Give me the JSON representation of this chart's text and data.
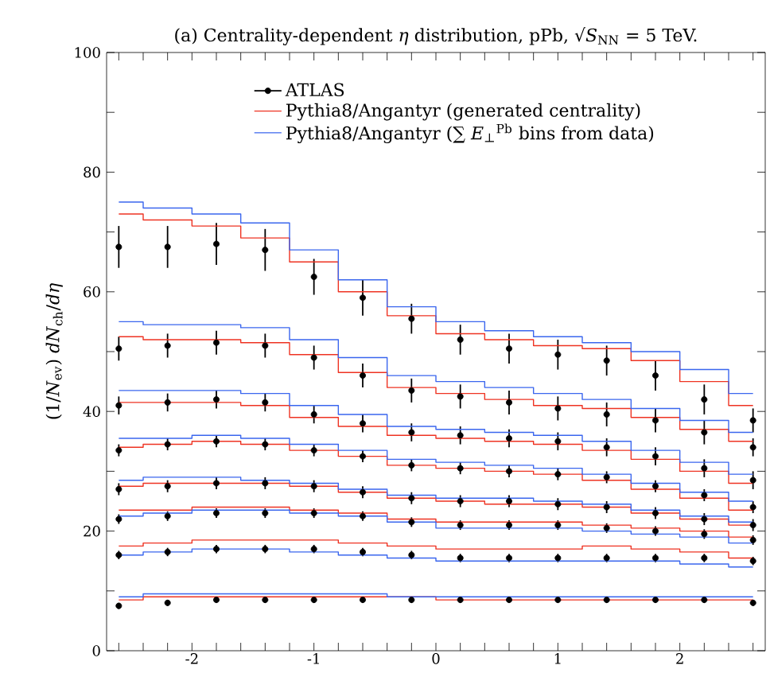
{
  "chart_data": {
    "type": "scatter",
    "title": "(a) Centrality-dependent *η* distribution, pPb, √*S*$_{NN}$ = 5 TeV.",
    "ylabel": "(1/*N*$_{ev}$) *dN*$_{ch}$/*dη*",
    "x": [
      -2.6,
      -2.2,
      -1.8,
      -1.4,
      -1.0,
      -0.6,
      -0.2,
      0.2,
      0.6,
      1.0,
      1.4,
      1.8,
      2.2,
      2.6
    ],
    "xlim": [
      -2.7,
      2.7
    ],
    "ylim": [
      0,
      100
    ],
    "xticks": [
      {
        "value": -2.6,
        "label": null
      },
      {
        "value": -2.4,
        "label": null
      },
      {
        "value": -2.2,
        "label": null
      },
      {
        "value": -2,
        "label": "-2"
      },
      {
        "value": -1.8,
        "label": null
      },
      {
        "value": -1.6,
        "label": null
      },
      {
        "value": -1.4,
        "label": null
      },
      {
        "value": -1.2,
        "label": null
      },
      {
        "value": -1,
        "label": "-1"
      },
      {
        "value": -0.8,
        "label": null
      },
      {
        "value": -0.6,
        "label": null
      },
      {
        "value": -0.4,
        "label": null
      },
      {
        "value": -0.2,
        "label": null
      },
      0,
      {
        "value": 0.2,
        "label": null
      },
      {
        "value": 0.4,
        "label": null
      },
      {
        "value": 0.6,
        "label": null
      },
      {
        "value": 0.8,
        "label": null
      },
      1,
      {
        "value": 1.2,
        "label": null
      },
      {
        "value": 1.4,
        "label": null
      },
      {
        "value": 1.6,
        "label": null
      },
      {
        "value": 1.8,
        "label": null
      },
      2,
      {
        "value": 2.2,
        "label": null
      },
      {
        "value": 2.4,
        "label": null
      },
      {
        "value": 2.6,
        "label": null
      }
    ],
    "yticks": [
      0,
      {
        "value": 10,
        "label": null
      },
      20,
      {
        "value": 30,
        "label": null
      },
      40,
      {
        "value": 50,
        "label": null
      },
      60,
      {
        "value": 70,
        "label": null
      },
      80,
      {
        "value": 90,
        "label": null
      },
      100
    ],
    "legend": "top",
    "series": [
      {
        "name": "ATLAS",
        "marker": "circle",
        "color": "#000000",
        "values": [
          67.5,
          67.5,
          68,
          67,
          62.5,
          59,
          55.5,
          52,
          50.5,
          49.5,
          48.5,
          46,
          42,
          38.5
        ],
        "errors": [
          3.5,
          3.5,
          3.5,
          3.5,
          3,
          3,
          2.5,
          2.5,
          2.5,
          2.5,
          2.5,
          2.5,
          2.5,
          2
        ]
      },
      {
        "name": "Pythia8/Angantyr (generated centrality)",
        "type": "step",
        "color": "#ee3322",
        "values": [
          73,
          72,
          71,
          69,
          65,
          60,
          56,
          53,
          52,
          51,
          50.5,
          48.5,
          45,
          41
        ]
      },
      {
        "name": "Pythia8/Angantyr (∑ *E*$_{⊥}$$^{Pb}$ bins from data)",
        "type": "step",
        "color": "#3a66ee",
        "values": [
          75,
          74,
          73,
          71.5,
          67,
          62,
          57.5,
          55,
          53.5,
          52.5,
          51.5,
          50,
          47,
          43
        ]
      },
      {
        "marker": "circle",
        "color": "#000000",
        "values": [
          50.5,
          51,
          51.5,
          51,
          49,
          46,
          43.5,
          42.5,
          41.5,
          40.5,
          39.5,
          38.5,
          36.5,
          34
        ],
        "errors": [
          2,
          2,
          2,
          2,
          2,
          2,
          2,
          2,
          2,
          2,
          2,
          2,
          2,
          1.5
        ]
      },
      {
        "type": "step",
        "color": "#ee3322",
        "values": [
          52.5,
          52,
          52,
          51.5,
          49.5,
          46.5,
          44,
          43,
          42,
          41,
          40.5,
          39,
          37,
          35
        ]
      },
      {
        "type": "step",
        "color": "#3a66ee",
        "values": [
          55,
          54.5,
          54.5,
          54,
          52,
          49,
          46,
          45,
          44,
          43,
          42,
          40.5,
          38.5,
          36.5
        ]
      },
      {
        "marker": "circle",
        "color": "#000000",
        "values": [
          41,
          41.5,
          42,
          41.5,
          39.5,
          38,
          36.5,
          36,
          35.5,
          35,
          34,
          32.5,
          30.5,
          28.5
        ],
        "errors": [
          1.5,
          1.5,
          1.5,
          1.5,
          1.5,
          1.5,
          1.5,
          1.5,
          1.5,
          1.5,
          1.5,
          1.5,
          1.5,
          1.5
        ]
      },
      {
        "type": "step",
        "color": "#ee3322",
        "values": [
          41.5,
          41.5,
          41.5,
          41,
          39,
          37.5,
          36,
          35.5,
          35,
          34.5,
          33.5,
          32,
          30,
          28
        ]
      },
      {
        "type": "step",
        "color": "#3a66ee",
        "values": [
          43.5,
          43.5,
          43.5,
          43,
          41,
          39.5,
          37.5,
          37,
          36.5,
          36,
          35,
          33.5,
          31.5,
          29.5
        ]
      },
      {
        "marker": "circle",
        "color": "#000000",
        "values": [
          33.5,
          34.5,
          35,
          34.5,
          33.5,
          32.5,
          31,
          30.5,
          30,
          29.5,
          29,
          27.5,
          26,
          24
        ],
        "errors": [
          1,
          1,
          1,
          1,
          1,
          1,
          1,
          1,
          1,
          1,
          1,
          1,
          1,
          1
        ]
      },
      {
        "type": "step",
        "color": "#ee3322",
        "values": [
          34,
          34.5,
          35,
          34.5,
          33.5,
          32.5,
          31,
          30.5,
          30,
          29.5,
          28.5,
          27,
          25.5,
          23.5
        ]
      },
      {
        "type": "step",
        "color": "#3a66ee",
        "values": [
          35.5,
          35.5,
          36,
          35.5,
          34.5,
          33.5,
          32,
          31.5,
          31,
          30.5,
          29.5,
          28,
          26.5,
          25
        ]
      },
      {
        "marker": "circle",
        "color": "#000000",
        "values": [
          27,
          27.5,
          28,
          28,
          27.5,
          26.5,
          25.5,
          25,
          25,
          24.5,
          24,
          23,
          22,
          21
        ],
        "errors": [
          1,
          1,
          1,
          1,
          1,
          1,
          1,
          1,
          1,
          1,
          1,
          1,
          1,
          1
        ]
      },
      {
        "type": "step",
        "color": "#ee3322",
        "values": [
          27.5,
          28,
          28,
          28,
          27.5,
          26.5,
          25.5,
          25,
          24.5,
          24.5,
          24,
          23,
          22,
          21
        ]
      },
      {
        "type": "step",
        "color": "#3a66ee",
        "values": [
          28.5,
          29,
          29,
          28.5,
          28,
          27,
          26,
          25.5,
          25.5,
          25,
          24.5,
          23.5,
          22.5,
          21.5
        ]
      },
      {
        "marker": "circle",
        "color": "#000000",
        "values": [
          22,
          22.5,
          23,
          23,
          23,
          22.5,
          21.5,
          21,
          21,
          21,
          20.5,
          20,
          19.5,
          18.5
        ],
        "errors": [
          0.8,
          0.8,
          0.8,
          0.8,
          0.8,
          0.8,
          0.8,
          0.8,
          0.8,
          0.8,
          0.8,
          0.8,
          0.8,
          0.8
        ]
      },
      {
        "type": "step",
        "color": "#ee3322",
        "values": [
          23.5,
          23.5,
          24,
          24,
          23.5,
          23,
          22,
          21.5,
          21.5,
          21.5,
          21,
          20.5,
          20,
          19
        ]
      },
      {
        "type": "step",
        "color": "#3a66ee",
        "values": [
          22.5,
          23,
          23.5,
          23.5,
          23,
          22.5,
          21.5,
          20.5,
          20.5,
          20.5,
          20,
          19.5,
          19,
          18
        ]
      },
      {
        "marker": "circle",
        "color": "#000000",
        "values": [
          16,
          16.5,
          17,
          17,
          17,
          16.5,
          16,
          15.5,
          15.5,
          15.5,
          15.5,
          15.5,
          15.5,
          15
        ],
        "errors": [
          0.7,
          0.7,
          0.7,
          0.7,
          0.7,
          0.7,
          0.7,
          0.7,
          0.7,
          0.7,
          0.7,
          0.7,
          0.7,
          0.7
        ]
      },
      {
        "type": "step",
        "color": "#ee3322",
        "values": [
          17.5,
          18,
          18.5,
          18.5,
          18.5,
          18,
          17.5,
          17,
          17,
          17,
          17.5,
          17,
          16.5,
          15.5
        ]
      },
      {
        "type": "step",
        "color": "#3a66ee",
        "values": [
          16,
          16.5,
          17,
          17,
          16.5,
          16,
          15.5,
          15,
          15,
          15,
          15,
          15,
          14.5,
          14
        ]
      },
      {
        "marker": "circle",
        "color": "#000000",
        "values": [
          7.5,
          8,
          8.5,
          8.5,
          8.5,
          8.5,
          8.5,
          8.5,
          8.5,
          8.5,
          8.5,
          8.5,
          8.5,
          8
        ],
        "errors": [
          0.5,
          0.5,
          0.5,
          0.5,
          0.5,
          0.5,
          0.5,
          0.5,
          0.5,
          0.5,
          0.5,
          0.5,
          0.5,
          0.5
        ]
      },
      {
        "type": "step",
        "color": "#ee3322",
        "values": [
          8.5,
          9,
          9,
          9,
          9,
          9,
          9,
          8.5,
          8.5,
          8.5,
          8.5,
          8.5,
          8.5,
          8.5
        ]
      },
      {
        "type": "step",
        "color": "#3a66ee",
        "values": [
          9,
          9.5,
          9.5,
          9.5,
          9.5,
          9.5,
          9,
          9,
          9,
          9,
          9,
          9,
          9,
          9
        ]
      }
    ]
  }
}
